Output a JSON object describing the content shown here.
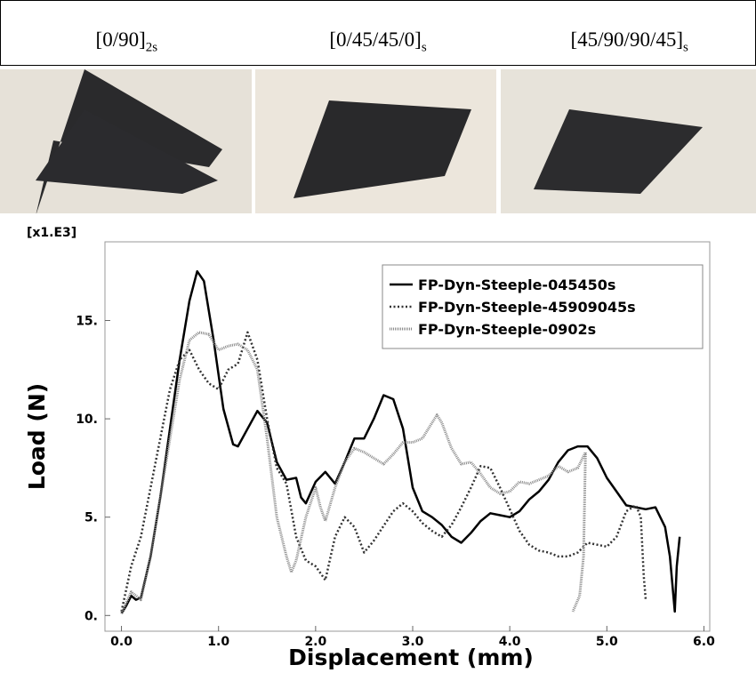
{
  "header": {
    "cells": [
      {
        "text": "[0/90]",
        "subscript": "2s"
      },
      {
        "text": "[0/45/45/0]",
        "subscript": "s"
      },
      {
        "text": "[45/90/90/45]",
        "subscript": "s"
      }
    ]
  },
  "chart_data": {
    "type": "line",
    "y_multiplier": "[x1.E3]",
    "x_label": "Displacement (mm)",
    "y_label": "Load (N)",
    "xlim": [
      -0.17,
      6.06
    ],
    "ylim": [
      -0.8,
      19
    ],
    "xticks": [
      {
        "value": 0,
        "label": "0.0"
      },
      {
        "value": 1,
        "label": "1.0"
      },
      {
        "value": 2,
        "label": "2.0"
      },
      {
        "value": 3,
        "label": "3.0"
      },
      {
        "value": 4,
        "label": "4.0"
      },
      {
        "value": 5,
        "label": "5.0"
      },
      {
        "value": 6,
        "label": "6.0"
      }
    ],
    "yticks": [
      {
        "value": 0,
        "label": "0."
      },
      {
        "value": 5,
        "label": "5."
      },
      {
        "value": 10,
        "label": "10."
      },
      {
        "value": 15,
        "label": "15."
      }
    ],
    "legend": "top-right",
    "series": [
      {
        "name": "FP-Dyn-Steeple-045450s",
        "color": "#000000",
        "style": "solid",
        "x": [
          0,
          0.05,
          0.1,
          0.15,
          0.2,
          0.3,
          0.4,
          0.5,
          0.6,
          0.7,
          0.78,
          0.85,
          0.95,
          1.05,
          1.15,
          1.2,
          1.3,
          1.4,
          1.5,
          1.6,
          1.7,
          1.8,
          1.85,
          1.9,
          2.0,
          2.1,
          2.2,
          2.3,
          2.4,
          2.5,
          2.6,
          2.7,
          2.8,
          2.9,
          3.0,
          3.1,
          3.2,
          3.3,
          3.4,
          3.5,
          3.6,
          3.7,
          3.8,
          3.9,
          4.0,
          4.1,
          4.2,
          4.3,
          4.4,
          4.5,
          4.6,
          4.7,
          4.8,
          4.9,
          5.0,
          5.1,
          5.2,
          5.3,
          5.4,
          5.5,
          5.6,
          5.65,
          5.7,
          5.72,
          5.75
        ],
        "values": [
          0.1,
          0.5,
          1.0,
          0.8,
          0.9,
          3,
          6,
          9.5,
          13,
          16,
          17.5,
          17,
          14,
          10.5,
          8.7,
          8.6,
          9.5,
          10.4,
          9.8,
          7.8,
          6.9,
          7,
          6,
          5.7,
          6.8,
          7.3,
          6.7,
          7.8,
          9,
          9,
          10,
          11.2,
          11,
          9.5,
          6.5,
          5.3,
          5,
          4.6,
          4,
          3.7,
          4.2,
          4.8,
          5.2,
          5.1,
          5,
          5.3,
          5.9,
          6.3,
          6.9,
          7.8,
          8.4,
          8.6,
          8.6,
          8,
          7,
          6.3,
          5.6,
          5.5,
          5.4,
          5.5,
          4.5,
          3,
          0.2,
          2.5,
          4.0
        ]
      },
      {
        "name": "FP-Dyn-Steeple-45909045s",
        "color": "#333333",
        "style": "dotted",
        "x": [
          0,
          0.1,
          0.2,
          0.3,
          0.4,
          0.5,
          0.6,
          0.7,
          0.8,
          0.9,
          1.0,
          1.1,
          1.2,
          1.3,
          1.4,
          1.5,
          1.6,
          1.7,
          1.8,
          1.9,
          2.0,
          2.1,
          2.2,
          2.3,
          2.4,
          2.5,
          2.6,
          2.8,
          2.9,
          3.0,
          3.1,
          3.2,
          3.3,
          3.4,
          3.5,
          3.6,
          3.7,
          3.8,
          3.9,
          4.0,
          4.1,
          4.2,
          4.3,
          4.4,
          4.5,
          4.6,
          4.7,
          4.8,
          5.0,
          5.1,
          5.2,
          5.3,
          5.35,
          5.38,
          5.4
        ],
        "values": [
          0.2,
          2.5,
          4,
          6.5,
          9,
          11.5,
          13,
          13.5,
          12.5,
          11.8,
          11.5,
          12.5,
          12.8,
          14.4,
          13,
          10,
          7.5,
          6.7,
          4,
          2.8,
          2.5,
          1.8,
          4,
          5,
          4.5,
          3.2,
          3.8,
          5.3,
          5.7,
          5.3,
          4.7,
          4.3,
          4.0,
          4.6,
          5.5,
          6.5,
          7.6,
          7.5,
          6.5,
          5.4,
          4.3,
          3.6,
          3.3,
          3.2,
          3.0,
          3.0,
          3.2,
          3.7,
          3.5,
          4,
          5.3,
          5.6,
          5.0,
          2,
          0.8
        ]
      },
      {
        "name": "FP-Dyn-Steeple-0902s",
        "color": "#8a8a8a",
        "style": "dense-dotted",
        "x": [
          0,
          0.1,
          0.2,
          0.3,
          0.4,
          0.5,
          0.6,
          0.7,
          0.8,
          0.9,
          1.0,
          1.1,
          1.2,
          1.3,
          1.4,
          1.5,
          1.6,
          1.7,
          1.75,
          1.8,
          1.9,
          2.0,
          2.05,
          2.1,
          2.2,
          2.3,
          2.4,
          2.5,
          2.6,
          2.7,
          2.8,
          2.9,
          3.0,
          3.1,
          3.2,
          3.25,
          3.3,
          3.4,
          3.5,
          3.6,
          3.7,
          3.8,
          3.9,
          4.0,
          4.1,
          4.2,
          4.3,
          4.4,
          4.5,
          4.6,
          4.7,
          4.78,
          4.76,
          4.72,
          4.65
        ],
        "values": [
          0.1,
          1.2,
          0.8,
          3,
          6,
          9,
          12,
          14,
          14.4,
          14.3,
          13.5,
          13.7,
          13.8,
          13.5,
          12.5,
          9,
          5,
          3,
          2.2,
          2.8,
          5,
          6.5,
          5.5,
          4.8,
          6.5,
          7.8,
          8.5,
          8.3,
          8,
          7.7,
          8.2,
          8.8,
          8.8,
          9,
          9.8,
          10.2,
          9.8,
          8.5,
          7.7,
          7.8,
          7.2,
          6.5,
          6.2,
          6.3,
          6.8,
          6.7,
          6.9,
          7.1,
          7.6,
          7.3,
          7.5,
          8.3,
          3,
          1,
          0.2
        ]
      }
    ]
  }
}
